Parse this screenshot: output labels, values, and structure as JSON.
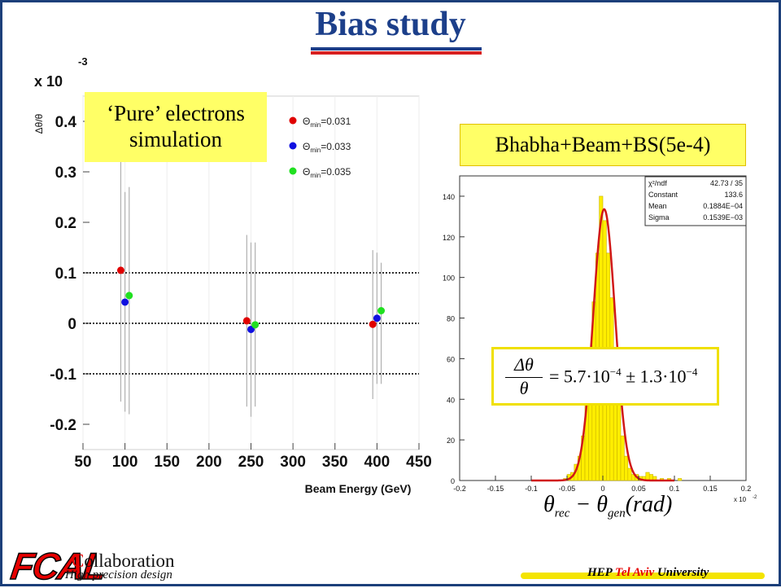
{
  "title": "Bias study",
  "label_pure": "‘Pure’ electrons simulation",
  "label_pure_line1": "‘Pure’ electrons",
  "label_pure_line2": "simulation",
  "label_bhabha": "Bhabha+Beam+BS(5e-4)",
  "formula": {
    "lhs_num": "Δθ",
    "lhs_den": "θ",
    "rhs": "= 5.7·10",
    "exp1": "−4",
    "pm": " ± 1.3·10",
    "exp2": "−4"
  },
  "x_expression": {
    "theta1": "θ",
    "sub1": "rec",
    "minus": " − ",
    "theta2": "θ",
    "sub2": "gen",
    "rest": "(rad)"
  },
  "footer": {
    "logo": "FCAL",
    "collab_first": "C",
    "collab_rest": "ollaboration",
    "subtitle": "High precision design",
    "hep": "HEP ",
    "tel": "Tel Aviv",
    "univ": " University"
  },
  "colors": {
    "red": "#e00000",
    "blue": "#1010e0",
    "green": "#20e020",
    "accent": "#1c3f8a",
    "yellow": "#ffff66"
  },
  "chart_data": [
    {
      "type": "scatter",
      "xlabel": "Beam Energy (GeV)",
      "ylabel": "Δθ/θ",
      "y_multiplier": "x 10",
      "y_multiplier_exp": "-3",
      "xlim": [
        50,
        450
      ],
      "ylim": [
        -0.25,
        0.45
      ],
      "xticks": [
        50,
        100,
        150,
        200,
        250,
        300,
        350,
        400,
        450
      ],
      "yticks": [
        -0.2,
        -0.1,
        0,
        0.1,
        0.2,
        0.3,
        0.4
      ],
      "ytick_labels": [
        "-0.2",
        "-0.1",
        "0",
        "0.1",
        "0.2",
        "0.3",
        "0.4"
      ],
      "reference_lines": [
        0.1,
        0,
        -0.1
      ],
      "legend": [
        {
          "label_main": "Θ",
          "label_sub": "min",
          "label_val": "=0.031",
          "color": "#e00000"
        },
        {
          "label_main": "Θ",
          "label_sub": "min",
          "label_val": "=0.033",
          "color": "#1010e0"
        },
        {
          "label_main": "Θ",
          "label_sub": "min",
          "label_val": "=0.035",
          "color": "#20e020"
        }
      ],
      "series": [
        {
          "name": "Θmin=0.031",
          "color": "#e00000",
          "points": [
            {
              "x": 95,
              "y": 0.105,
              "lo": -0.155,
              "hi": 0.37
            },
            {
              "x": 245,
              "y": 0.005,
              "lo": -0.165,
              "hi": 0.175
            },
            {
              "x": 395,
              "y": -0.002,
              "lo": -0.15,
              "hi": 0.145
            }
          ]
        },
        {
          "name": "Θmin=0.033",
          "color": "#1010e0",
          "points": [
            {
              "x": 100,
              "y": 0.042,
              "lo": -0.175,
              "hi": 0.26
            },
            {
              "x": 250,
              "y": -0.012,
              "lo": -0.185,
              "hi": 0.16
            },
            {
              "x": 400,
              "y": 0.01,
              "lo": -0.12,
              "hi": 0.14
            }
          ]
        },
        {
          "name": "Θmin=0.035",
          "color": "#20e020",
          "points": [
            {
              "x": 105,
              "y": 0.055,
              "lo": -0.18,
              "hi": 0.27
            },
            {
              "x": 255,
              "y": -0.003,
              "lo": -0.165,
              "hi": 0.16
            },
            {
              "x": 405,
              "y": 0.025,
              "lo": -0.12,
              "hi": 0.12
            }
          ]
        }
      ]
    },
    {
      "type": "bar",
      "xlim": [
        -0.2,
        0.2
      ],
      "ylim": [
        0,
        150
      ],
      "xticks": [
        -0.2,
        -0.15,
        -0.1,
        -0.05,
        0,
        0.05,
        0.1,
        0.15,
        0.2
      ],
      "xtick_labels": [
        "-0.2",
        "-0.15",
        "-0.1",
        "-0.05",
        "0",
        "0.05",
        "0.1",
        "0.15",
        "0.2"
      ],
      "yticks": [
        0,
        20,
        40,
        60,
        80,
        100,
        120,
        140
      ],
      "x_multiplier": "x 10",
      "x_multiplier_exp": "-2",
      "bin_width": 0.005,
      "bin_centers": [
        -0.0525,
        -0.0475,
        -0.0425,
        -0.0375,
        -0.0325,
        -0.0275,
        -0.0225,
        -0.0175,
        -0.0125,
        -0.0075,
        -0.0025,
        0.0025,
        0.0075,
        0.0125,
        0.0175,
        0.0225,
        0.0275,
        0.0325,
        0.0375,
        0.0425,
        0.0475,
        0.0525,
        0.0575,
        0.0625,
        0.0675,
        0.0725,
        0.0825,
        0.0925,
        0.1075
      ],
      "counts": [
        1,
        3,
        4,
        8,
        12,
        22,
        38,
        60,
        88,
        112,
        140,
        128,
        112,
        90,
        62,
        38,
        22,
        12,
        6,
        3,
        3,
        2,
        2,
        4,
        3,
        2,
        1,
        1,
        1
      ],
      "fit": {
        "constant": 133.6,
        "mean": 1.884e-05,
        "sigma": 0.0001539
      },
      "stats": [
        {
          "label": "χ²/ndf",
          "value": "42.73  /  35"
        },
        {
          "label": "Constant",
          "value": "133.6"
        },
        {
          "label": "Mean",
          "value": "0.1884E−04"
        },
        {
          "label": "Sigma",
          "value": "0.1539E−03"
        }
      ]
    }
  ]
}
